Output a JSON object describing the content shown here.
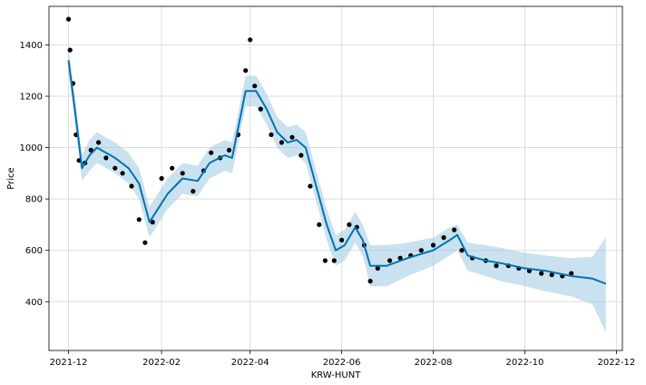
{
  "chart_data": {
    "type": "line",
    "title": "",
    "xlabel": "KRW-HUNT",
    "ylabel": "Price",
    "grid": true,
    "xlim": [
      "2021-11-18",
      "2022-12-05"
    ],
    "ylim": [
      210,
      1550
    ],
    "x_ticks": [
      "2021-12",
      "2022-02",
      "2022-04",
      "2022-06",
      "2022-08",
      "2022-10",
      "2022-12"
    ],
    "y_ticks": [
      400,
      600,
      800,
      1000,
      1200,
      1400
    ],
    "colors": {
      "observed_points": "#000000",
      "forecast_line": "#0072B2",
      "uncertainty_band": "#9ecae1"
    },
    "observed": {
      "x": [
        "2021-12-01",
        "2021-12-02",
        "2021-12-04",
        "2021-12-06",
        "2021-12-08",
        "2021-12-12",
        "2021-12-16",
        "2021-12-21",
        "2021-12-26",
        "2022-01-01",
        "2022-01-06",
        "2022-01-12",
        "2022-01-17",
        "2022-01-21",
        "2022-01-26",
        "2022-02-01",
        "2022-02-08",
        "2022-02-15",
        "2022-02-22",
        "2022-03-01",
        "2022-03-06",
        "2022-03-12",
        "2022-03-18",
        "2022-03-24",
        "2022-03-29",
        "2022-04-01",
        "2022-04-04",
        "2022-04-08",
        "2022-04-15",
        "2022-04-22",
        "2022-04-29",
        "2022-05-05",
        "2022-05-11",
        "2022-05-17",
        "2022-05-21",
        "2022-05-27",
        "2022-06-01",
        "2022-06-06",
        "2022-06-11",
        "2022-06-16",
        "2022-06-20",
        "2022-06-25",
        "2022-07-03",
        "2022-07-10",
        "2022-07-17",
        "2022-07-24",
        "2022-08-01",
        "2022-08-08",
        "2022-08-15",
        "2022-08-20",
        "2022-08-27",
        "2022-09-05",
        "2022-09-12",
        "2022-09-20",
        "2022-09-27",
        "2022-10-04",
        "2022-10-12",
        "2022-10-19",
        "2022-10-26",
        "2022-11-01"
      ],
      "y": [
        1500,
        1380,
        1250,
        1050,
        950,
        940,
        990,
        1020,
        960,
        920,
        900,
        850,
        720,
        630,
        710,
        880,
        920,
        900,
        830,
        910,
        980,
        960,
        990,
        1050,
        1300,
        1420,
        1240,
        1150,
        1050,
        1020,
        1040,
        970,
        850,
        700,
        560,
        560,
        640,
        700,
        690,
        620,
        480,
        530,
        560,
        570,
        580,
        600,
        620,
        650,
        680,
        600,
        570,
        560,
        540,
        540,
        530,
        520,
        510,
        505,
        500,
        510
      ]
    },
    "forecast": {
      "x": [
        "2021-12-01",
        "2021-12-05",
        "2021-12-10",
        "2021-12-15",
        "2021-12-20",
        "2022-01-01",
        "2022-01-10",
        "2022-01-17",
        "2022-01-24",
        "2022-02-05",
        "2022-02-15",
        "2022-02-25",
        "2022-03-05",
        "2022-03-15",
        "2022-03-20",
        "2022-03-29",
        "2022-04-05",
        "2022-04-12",
        "2022-04-19",
        "2022-04-26",
        "2022-05-02",
        "2022-05-08",
        "2022-05-15",
        "2022-05-22",
        "2022-05-28",
        "2022-06-03",
        "2022-06-10",
        "2022-06-15",
        "2022-06-20",
        "2022-07-01",
        "2022-07-15",
        "2022-08-01",
        "2022-08-12",
        "2022-08-17",
        "2022-08-24",
        "2022-09-05",
        "2022-09-15",
        "2022-10-01",
        "2022-10-15",
        "2022-11-01",
        "2022-11-15",
        "2022-11-24"
      ],
      "y": [
        1340,
        1160,
        920,
        970,
        1000,
        960,
        920,
        860,
        710,
        820,
        880,
        870,
        940,
        970,
        960,
        1220,
        1220,
        1150,
        1060,
        1020,
        1030,
        1000,
        850,
        700,
        600,
        620,
        690,
        640,
        540,
        540,
        570,
        600,
        640,
        660,
        580,
        560,
        550,
        530,
        520,
        500,
        490,
        470
      ],
      "upper": [
        1390,
        1210,
        970,
        1030,
        1060,
        1020,
        980,
        920,
        770,
        880,
        940,
        930,
        1000,
        1030,
        1020,
        1280,
        1280,
        1210,
        1120,
        1080,
        1090,
        1060,
        910,
        760,
        660,
        680,
        750,
        700,
        620,
        620,
        630,
        650,
        690,
        700,
        630,
        620,
        610,
        590,
        580,
        570,
        575,
        650
      ],
      "lower": [
        1290,
        1110,
        870,
        910,
        940,
        900,
        860,
        800,
        650,
        760,
        820,
        810,
        880,
        910,
        900,
        1160,
        1160,
        1090,
        1000,
        960,
        970,
        940,
        790,
        640,
        540,
        560,
        630,
        580,
        460,
        460,
        500,
        540,
        580,
        600,
        520,
        500,
        480,
        460,
        440,
        420,
        390,
        280
      ]
    }
  }
}
